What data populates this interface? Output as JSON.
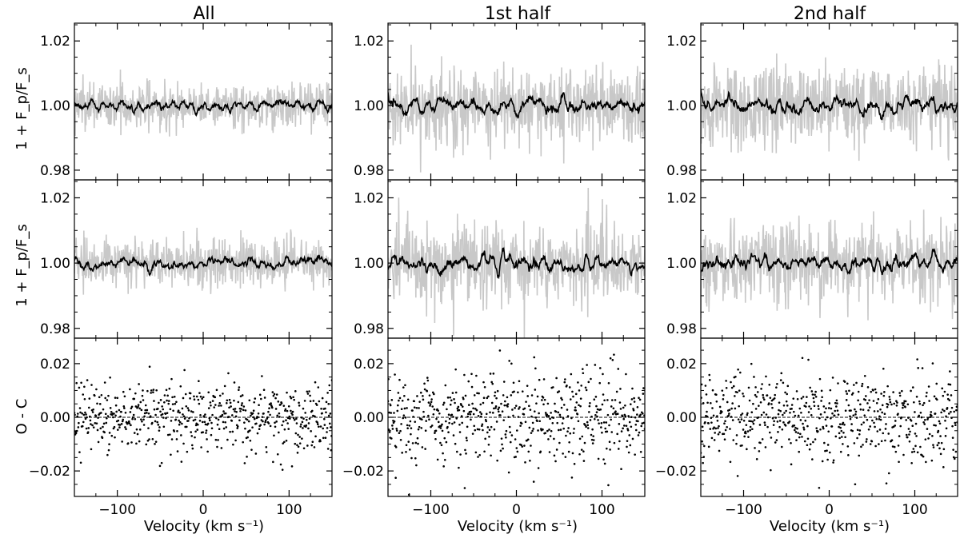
{
  "figure": {
    "column_titles": [
      "All",
      "1st half",
      "2nd half"
    ],
    "row_ylabels": [
      "1 + F_p/F_s",
      "1 + F_p/F_s",
      "O - C"
    ],
    "xlabel": "Velocity (km s⁻¹)"
  },
  "chart_data": {
    "type": "line",
    "layout": "3x3 grid, shared x axis per column",
    "xlim": [
      -150,
      150
    ],
    "xticks": [
      -100,
      0,
      100
    ],
    "xticklabels": [
      "−100",
      "0",
      "100"
    ],
    "xlabel": "Velocity (km s⁻¹)",
    "colors": {
      "observed": "#c8c8c8",
      "smoothed": "#000000",
      "residual": "#000000",
      "zero_line": "#000000"
    },
    "rows": [
      {
        "kind": "spectrum",
        "ylabel": "1 + F_p/F_s",
        "ylim": [
          0.977,
          1.0255
        ],
        "yticks": [
          0.98,
          1.0,
          1.02
        ],
        "yticklabels": [
          "0.98",
          "1.00",
          "1.02"
        ]
      },
      {
        "kind": "spectrum",
        "ylabel": "1 + F_p/F_s",
        "ylim": [
          0.977,
          1.0255
        ],
        "yticks": [
          0.98,
          1.0,
          1.02
        ],
        "yticklabels": [
          "0.98",
          "1.00",
          "1.02"
        ]
      },
      {
        "kind": "residuals",
        "ylabel": "O - C",
        "ylim": [
          -0.0295,
          0.0295
        ],
        "yticks": [
          -0.02,
          0.0,
          0.02
        ],
        "yticklabels": [
          "−0.02",
          "0.00",
          "0.02"
        ]
      }
    ],
    "columns": [
      {
        "title": "All",
        "noise": 0.0037,
        "smooth_amp": 0.0013,
        "resid_sd": 0.0062
      },
      {
        "title": "1st half",
        "noise": 0.006,
        "smooth_amp": 0.0019,
        "resid_sd": 0.0085
      },
      {
        "title": "2nd half",
        "noise": 0.0062,
        "smooth_amp": 0.002,
        "resid_sd": 0.0082
      }
    ],
    "series": [
      {
        "name": "",
        "role": "observed",
        "color": "#c8c8c8"
      },
      {
        "name": "",
        "role": "smoothed model",
        "color": "#000000"
      },
      {
        "name": "",
        "role": "residuals (O - C)",
        "color": "#000000"
      }
    ],
    "zero_line": 0.0,
    "n_points": 600
  }
}
